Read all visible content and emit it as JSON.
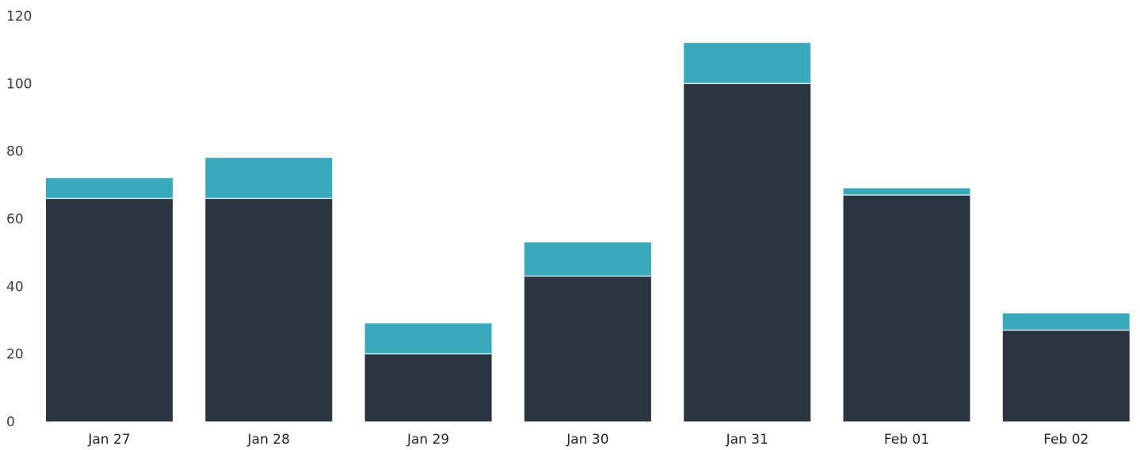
{
  "chart_data": {
    "type": "bar",
    "stacked": true,
    "categories": [
      "Jan 27",
      "Jan 28",
      "Jan 29",
      "Jan 30",
      "Jan 31",
      "Feb 01",
      "Feb 02"
    ],
    "series": [
      {
        "color": "#2b3540",
        "values": [
          66,
          66,
          20,
          43,
          100,
          67,
          27
        ]
      },
      {
        "color": "#39a9bb",
        "values": [
          6,
          12,
          9,
          10,
          12,
          2,
          5
        ]
      }
    ],
    "title": "",
    "xlabel": "",
    "ylabel": "",
    "ylim": [
      0,
      120
    ],
    "yticks": [
      "0",
      "20",
      "40",
      "60",
      "80",
      "100",
      "120"
    ],
    "grid": false,
    "legend": "none"
  }
}
